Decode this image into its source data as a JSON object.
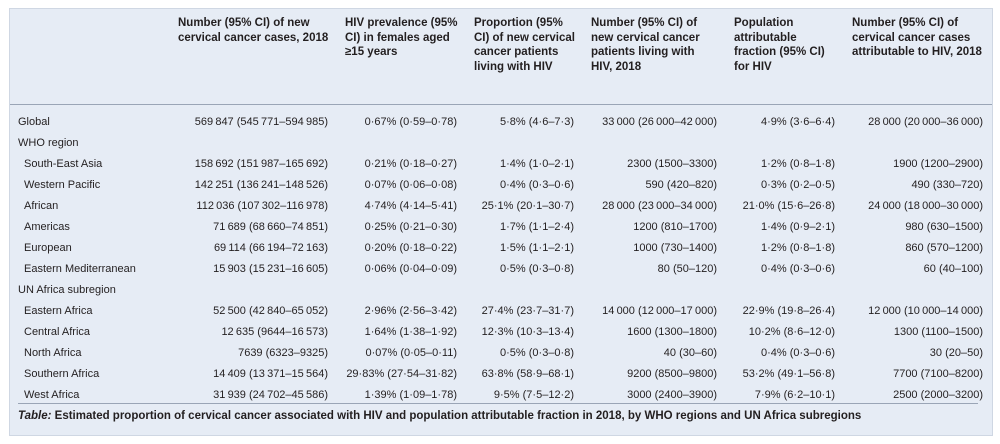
{
  "table": {
    "headers": [
      "",
      "Number (95% CI) of new cervical cancer cases, 2018",
      "HIV prevalence (95% CI) in females aged ≥15 years",
      "Proportion (95% CI) of new cervical cancer patients living with HIV",
      "Number (95% CI) of new cervical cancer patients living with HIV, 2018",
      "Population attributable fraction (95% CI) for HIV",
      "Number (95% CI) of cervical cancer cases attributable to HIV, 2018"
    ],
    "rows": [
      {
        "label": "Global",
        "kind": "data",
        "cells": [
          "569 847 (545 771–594 985)",
          "0·67% (0·59–0·78)",
          "5·8% (4·6–7·3)",
          "33 000 (26 000–42 000)",
          "4·9% (3·6–6·4)",
          "28 000 (20 000–36 000)"
        ]
      },
      {
        "label": "WHO region",
        "kind": "group",
        "cells": [
          "",
          "",
          "",
          "",
          "",
          ""
        ]
      },
      {
        "label": "South-East Asia",
        "kind": "sub",
        "cells": [
          "158 692 (151 987–165 692)",
          "0·21% (0·18–0·27)",
          "1·4% (1·0–2·1)",
          "2300 (1500–3300)",
          "1·2% (0·8–1·8)",
          "1900 (1200–2900)"
        ]
      },
      {
        "label": "Western Pacific",
        "kind": "sub",
        "cells": [
          "142 251 (136 241–148 526)",
          "0·07% (0·06–0·08)",
          "0·4% (0·3–0·6)",
          "590 (420–820)",
          "0·3% (0·2–0·5)",
          "490 (330–720)"
        ]
      },
      {
        "label": "African",
        "kind": "sub",
        "cells": [
          "112 036 (107 302–116 978)",
          "4·74% (4·14–5·41)",
          "25·1% (20·1–30·7)",
          "28 000 (23 000–34 000)",
          "21·0% (15·6–26·8)",
          "24 000 (18 000–30 000)"
        ]
      },
      {
        "label": "Americas",
        "kind": "sub",
        "cells": [
          "71 689 (68 660–74 851)",
          "0·25% (0·21–0·30)",
          "1·7% (1·1–2·4)",
          "1200 (810–1700)",
          "1·4% (0·9–2·1)",
          "980 (630–1500)"
        ]
      },
      {
        "label": "European",
        "kind": "sub",
        "cells": [
          "69 114 (66 194–72 163)",
          "0·20% (0·18–0·22)",
          "1·5% (1·1–2·1)",
          "1000 (730–1400)",
          "1·2% (0·8–1·8)",
          "860 (570–1200)"
        ]
      },
      {
        "label": "Eastern Mediterranean",
        "kind": "sub",
        "cells": [
          "15 903 (15 231–16 605)",
          "0·06% (0·04–0·09)",
          "0·5% (0·3–0·8)",
          "80 (50–120)",
          "0·4% (0·3–0·6)",
          "60 (40–100)"
        ]
      },
      {
        "label": "UN Africa subregion",
        "kind": "group",
        "cells": [
          "",
          "",
          "",
          "",
          "",
          ""
        ]
      },
      {
        "label": "Eastern Africa",
        "kind": "sub",
        "cells": [
          "52 500 (42 840–65 052)",
          "2·96% (2·56–3·42)",
          "27·4% (23·7–31·7)",
          "14 000 (12 000–17 000)",
          "22·9% (19·8–26·4)",
          "12 000 (10 000–14 000)"
        ]
      },
      {
        "label": "Central Africa",
        "kind": "sub",
        "cells": [
          "12 635 (9644–16 573)",
          "1·64% (1·38–1·92)",
          "12·3% (10·3–13·4)",
          "1600 (1300–1800)",
          "10·2% (8·6–12·0)",
          "1300 (1100–1500)"
        ]
      },
      {
        "label": "North Africa",
        "kind": "sub",
        "cells": [
          "7639 (6323–9325)",
          "0·07% (0·05–0·11)",
          "0·5% (0·3–0·8)",
          "40 (30–60)",
          "0·4% (0·3–0·6)",
          "30 (20–50)"
        ]
      },
      {
        "label": "Southern Africa",
        "kind": "sub",
        "cells": [
          "14 409 (13 371–15 564)",
          "29·83% (27·54–31·82)",
          "63·8% (58·9–68·1)",
          "9200 (8500–9800)",
          "53·2% (49·1–56·8)",
          "7700 (7100–8200)"
        ]
      },
      {
        "label": "West Africa",
        "kind": "sub",
        "cells": [
          "31 939 (24 702–45 586)",
          "1·39% (1·09–1·78)",
          "9·5% (7·5–12·2)",
          "3000 (2400–3900)",
          "7·9% (6·2–10·1)",
          "2500 (2000–3200)"
        ]
      }
    ]
  },
  "caption": {
    "prefix": "Table:",
    "text": " Estimated proportion of cervical cancer associated with HIV and population attributable fraction in 2018, by WHO regions and UN Africa subregions"
  },
  "colors": {
    "panel_bg": "#e6ecf5",
    "rule": "#9aa5b6",
    "text": "#231f20"
  }
}
